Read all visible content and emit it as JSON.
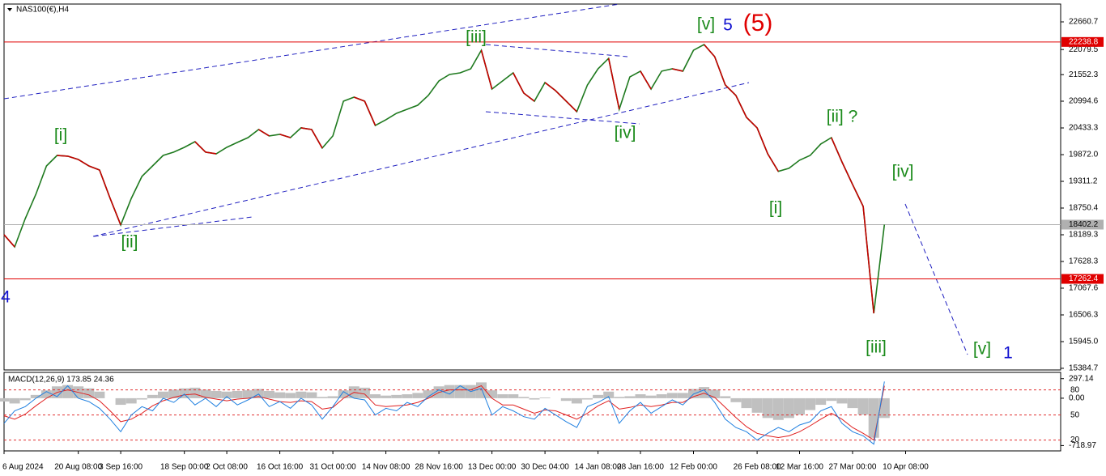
{
  "chart_data": [
    {
      "type": "line",
      "title": "NAS100(€),H4",
      "categories": [
        "6 Aug 2024",
        null,
        null,
        null,
        null,
        null,
        null,
        "20 Aug 08:00",
        null,
        null,
        null,
        "3 Sep 16:00",
        null,
        null,
        null,
        null,
        null,
        "18 Sep 00:00",
        null,
        null,
        null,
        "2 Oct 08:00",
        null,
        null,
        null,
        null,
        "16 Oct 16:00",
        null,
        null,
        null,
        null,
        "31 Oct 00:00",
        null,
        null,
        null,
        null,
        "14 Nov 08:00",
        null,
        null,
        null,
        null,
        "28 Nov 16:00",
        null,
        null,
        null,
        null,
        "13 Dec 00:00",
        null,
        null,
        null,
        null,
        "30 Dec 04:00",
        null,
        null,
        null,
        null,
        "14 Jan 08:00",
        null,
        null,
        null,
        "28 Jan 16:00",
        null,
        null,
        null,
        null,
        "12 Feb 00:00",
        null,
        null,
        null,
        null,
        null,
        "26 Feb 08:00",
        null,
        null,
        null,
        "12 Mar 16:00",
        null,
        null,
        null,
        null,
        "27 Mar 00:00",
        null,
        null,
        null,
        null,
        "10 Apr 08:00"
      ],
      "values": [
        18190,
        17935,
        18530,
        19040,
        19635,
        19855,
        19840,
        19770,
        19635,
        19550,
        18955,
        18395,
        18955,
        19415,
        19635,
        19855,
        19925,
        20025,
        20145,
        19925,
        19890,
        20025,
        20130,
        20230,
        20400,
        20265,
        20300,
        20230,
        20435,
        20400,
        20010,
        20265,
        20995,
        21080,
        20995,
        20485,
        20605,
        20740,
        20825,
        20910,
        21115,
        21420,
        21555,
        21590,
        21675,
        22065,
        21250,
        21420,
        21590,
        21165,
        20995,
        21385,
        21215,
        20995,
        20775,
        21335,
        21675,
        21895,
        20825,
        21505,
        21625,
        21250,
        21625,
        21675,
        21625,
        22065,
        22185,
        21930,
        21335,
        21115,
        20655,
        20435,
        19890,
        19520,
        19585,
        19755,
        19855,
        20095,
        20230,
        19720,
        19245,
        18785,
        16540,
        18402.2,
        null,
        null
      ],
      "colors": {
        "up": "#1f7a1f",
        "down": "#c40000"
      },
      "ylim": [
        15350,
        23035
      ],
      "yticks": [
        22660.7,
        22079.5,
        21552.3,
        20994.6,
        20433.3,
        {
          "value": 19872.0,
          "label": "19872.0"
        },
        19311.2,
        18750.4,
        18189.3,
        17628.3,
        17067.6,
        16506.3,
        {
          "value": 15945.0,
          "label": "15945.0"
        },
        15384.7
      ],
      "hlines": [
        {
          "value": 22238.8,
          "color": "#e00000"
        },
        {
          "value": 18402.2,
          "color": "#b0b0b0"
        },
        {
          "value": 17262.4,
          "color": "#e00000"
        }
      ],
      "annotations": [
        {
          "text": "[i]",
          "color": "#1a8a1a"
        },
        {
          "text": "[ii]",
          "color": "#1a8a1a"
        },
        {
          "text": "[iii]",
          "color": "#1a8a1a"
        },
        {
          "text": "[iv]",
          "color": "#1a8a1a"
        },
        {
          "text": "[v]",
          "color": "#1a8a1a"
        },
        {
          "text": "5",
          "color": "#1010d0"
        },
        {
          "text": "(5)",
          "color": "#e00000"
        },
        {
          "text": "[i]",
          "color": "#1a8a1a"
        },
        {
          "text": "[ii] ?",
          "color": "#1a8a1a"
        },
        {
          "text": "[iii]",
          "color": "#1a8a1a"
        },
        {
          "text": "[iv]",
          "color": "#1a8a1a"
        },
        {
          "text": "[v]",
          "color": "#1a8a1a"
        },
        {
          "text": "1",
          "color": "#1010d0"
        },
        {
          "text": "4",
          "color": "#1010d0"
        }
      ]
    },
    {
      "type": "bar",
      "title": "MACD(12,26,9) 173.85 24.36",
      "values": [
        -50,
        -80,
        -30,
        50,
        120,
        180,
        200,
        180,
        150,
        100,
        0,
        -100,
        -80,
        -20,
        50,
        100,
        130,
        150,
        160,
        130,
        110,
        100,
        110,
        120,
        140,
        110,
        90,
        80,
        100,
        90,
        20,
        30,
        120,
        180,
        160,
        60,
        40,
        50,
        60,
        80,
        120,
        180,
        200,
        200,
        200,
        240,
        120,
        60,
        60,
        20,
        -20,
        10,
        0,
        -40,
        -80,
        -20,
        50,
        100,
        20,
        30,
        60,
        40,
        60,
        80,
        80,
        140,
        170,
        130,
        30,
        -60,
        -150,
        -220,
        -300,
        -330,
        -300,
        -250,
        -180,
        -100,
        -40,
        -80,
        -150,
        -250,
        -600,
        -300,
        null,
        null
      ],
      "color": "#c0c0c0",
      "ylim": [
        -800,
        380
      ],
      "yticks": [
        297.14,
        {
          "value": 0,
          "label": "0.00"
        },
        -718.97
      ],
      "y2lim": [
        7,
        100
      ],
      "y2ticks": [
        80,
        50,
        20
      ],
      "series": [
        {
          "color": "#e02020",
          "axis": "y2",
          "values": [
            49,
            45,
            51,
            61,
            70,
            77,
            80,
            77,
            74,
            67,
            55,
            42,
            45,
            52,
            61,
            67,
            71,
            74,
            75,
            71,
            69,
            67,
            69,
            70,
            72,
            69,
            66,
            65,
            67,
            66,
            57,
            59,
            70,
            77,
            75,
            62,
            60,
            61,
            62,
            65,
            70,
            77,
            80,
            80,
            80,
            85,
            70,
            62,
            62,
            57,
            52,
            56,
            55,
            50,
            45,
            52,
            61,
            67,
            57,
            59,
            62,
            60,
            62,
            65,
            65,
            72,
            76,
            71,
            59,
            47,
            36,
            28,
            25,
            23,
            25,
            30,
            37,
            45,
            52,
            45,
            35,
            28,
            20,
            85,
            null,
            null
          ]
        },
        {
          "color": "#2080e0",
          "axis": "y2",
          "values": [
            40,
            55,
            60,
            70,
            78,
            72,
            85,
            70,
            66,
            58,
            45,
            30,
            50,
            60,
            55,
            70,
            65,
            75,
            62,
            70,
            60,
            72,
            62,
            68,
            75,
            60,
            66,
            58,
            70,
            62,
            45,
            60,
            78,
            70,
            68,
            50,
            58,
            55,
            65,
            60,
            72,
            80,
            75,
            85,
            78,
            82,
            50,
            60,
            55,
            48,
            45,
            58,
            50,
            42,
            35,
            60,
            65,
            72,
            40,
            55,
            65,
            52,
            60,
            68,
            62,
            75,
            80,
            65,
            45,
            35,
            30,
            20,
            28,
            35,
            30,
            38,
            42,
            55,
            60,
            40,
            30,
            25,
            15,
            90,
            null,
            null
          ]
        }
      ]
    }
  ]
}
